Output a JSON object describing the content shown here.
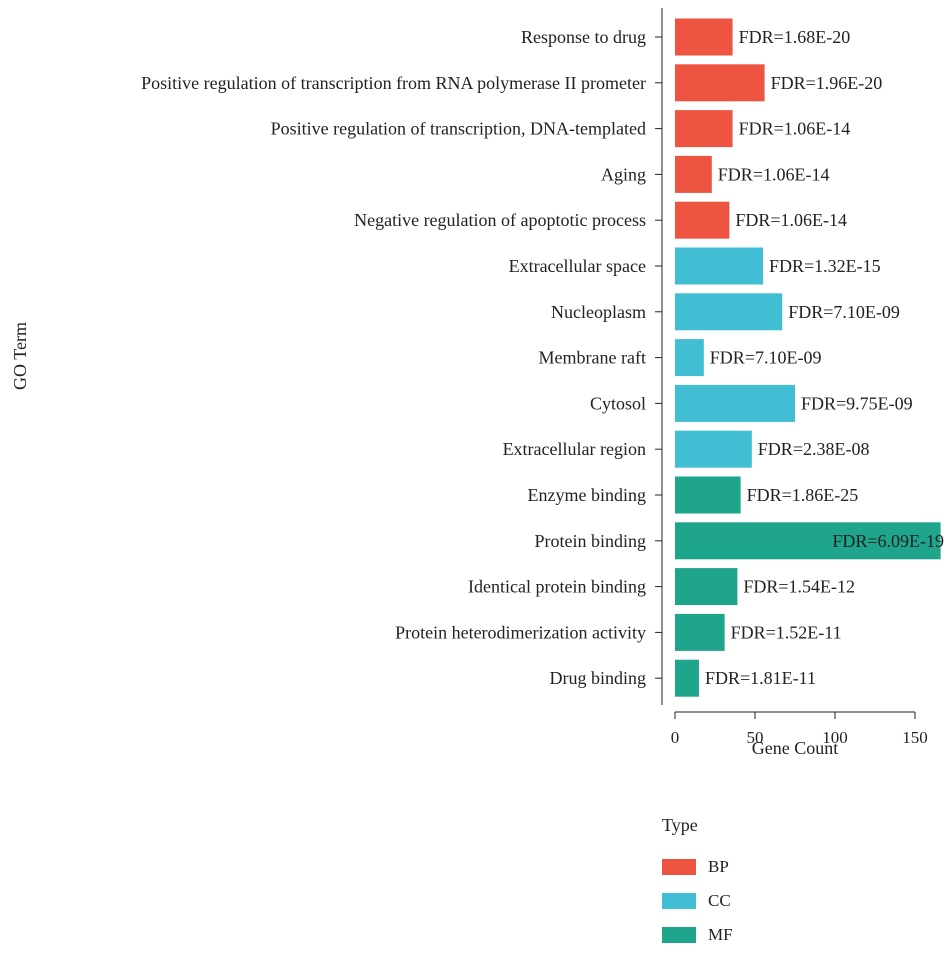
{
  "chart_data": {
    "type": "bar",
    "orientation": "horizontal",
    "xlabel": "Gene Count",
    "ylabel": "GO Term",
    "xlim": [
      -10,
      165
    ],
    "xticks": [
      0,
      50,
      100,
      150
    ],
    "grid": false,
    "categories": [
      "Response to drug",
      "Positive regulation of transcription from RNA polymerase II prometer",
      "Positive regulation of transcription, DNA-templated",
      "Aging",
      "Negative regulation of apoptotic process",
      "Extracellular space",
      "Nucleoplasm",
      "Membrane raft",
      "Cytosol",
      "Extracellular region",
      "Enzyme binding",
      "Protein binding",
      "Identical protein binding",
      "Protein heterodimerization activity",
      "Drug binding"
    ],
    "values": [
      36,
      56,
      36,
      23,
      34,
      55,
      67,
      18,
      75,
      48,
      41,
      166,
      39,
      31,
      15
    ],
    "types": [
      "BP",
      "BP",
      "BP",
      "BP",
      "BP",
      "CC",
      "CC",
      "CC",
      "CC",
      "CC",
      "MF",
      "MF",
      "MF",
      "MF",
      "MF"
    ],
    "labels": [
      "FDR=1.68E-20",
      "FDR=1.96E-20",
      "FDR=1.06E-14",
      "FDR=1.06E-14",
      "FDR=1.06E-14",
      "FDR=1.32E-15",
      "FDR=7.10E-09",
      "FDR=7.10E-09",
      "FDR=9.75E-09",
      "FDR=2.38E-08",
      "FDR=1.86E-25",
      "FDR=6.09E-19",
      "FDR=1.54E-12",
      "FDR=1.52E-11",
      "FDR=1.81E-11"
    ],
    "legend": {
      "title": "Type",
      "position": "bottom",
      "items": [
        {
          "name": "BP",
          "color": "#EE5540"
        },
        {
          "name": "CC",
          "color": "#41BDD4"
        },
        {
          "name": "MF",
          "color": "#1FA58B"
        }
      ]
    }
  }
}
